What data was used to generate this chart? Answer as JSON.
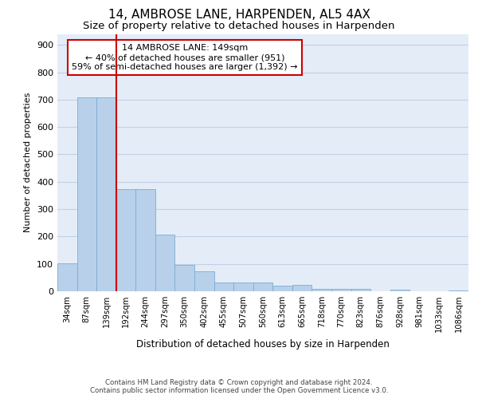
{
  "title1": "14, AMBROSE LANE, HARPENDEN, AL5 4AX",
  "title2": "Size of property relative to detached houses in Harpenden",
  "xlabel": "Distribution of detached houses by size in Harpenden",
  "ylabel": "Number of detached properties",
  "bar_labels": [
    "34sqm",
    "87sqm",
    "139sqm",
    "192sqm",
    "244sqm",
    "297sqm",
    "350sqm",
    "402sqm",
    "455sqm",
    "507sqm",
    "560sqm",
    "613sqm",
    "665sqm",
    "718sqm",
    "770sqm",
    "823sqm",
    "876sqm",
    "928sqm",
    "981sqm",
    "1033sqm",
    "1086sqm"
  ],
  "bar_values": [
    103,
    707,
    707,
    372,
    372,
    207,
    95,
    73,
    32,
    32,
    32,
    20,
    22,
    8,
    8,
    10,
    0,
    7,
    0,
    0,
    2
  ],
  "bar_color": "#b8d0ea",
  "bar_edge_color": "#7aaed0",
  "bg_color": "#e4edf7",
  "annotation_text_line1": "14 AMBROSE LANE: 149sqm",
  "annotation_text_line2": "← 40% of detached houses are smaller (951)",
  "annotation_text_line3": "59% of semi-detached houses are larger (1,392) →",
  "annotation_box_facecolor": "#ffffff",
  "annotation_box_edgecolor": "#cc0000",
  "vline_color": "#cc0000",
  "vline_x_index": 2,
  "ylim": [
    0,
    940
  ],
  "yticks": [
    0,
    100,
    200,
    300,
    400,
    500,
    600,
    700,
    800,
    900
  ],
  "title1_fontsize": 11,
  "title2_fontsize": 9.5,
  "footer_line1": "Contains HM Land Registry data © Crown copyright and database right 2024.",
  "footer_line2": "Contains public sector information licensed under the Open Government Licence v3.0."
}
